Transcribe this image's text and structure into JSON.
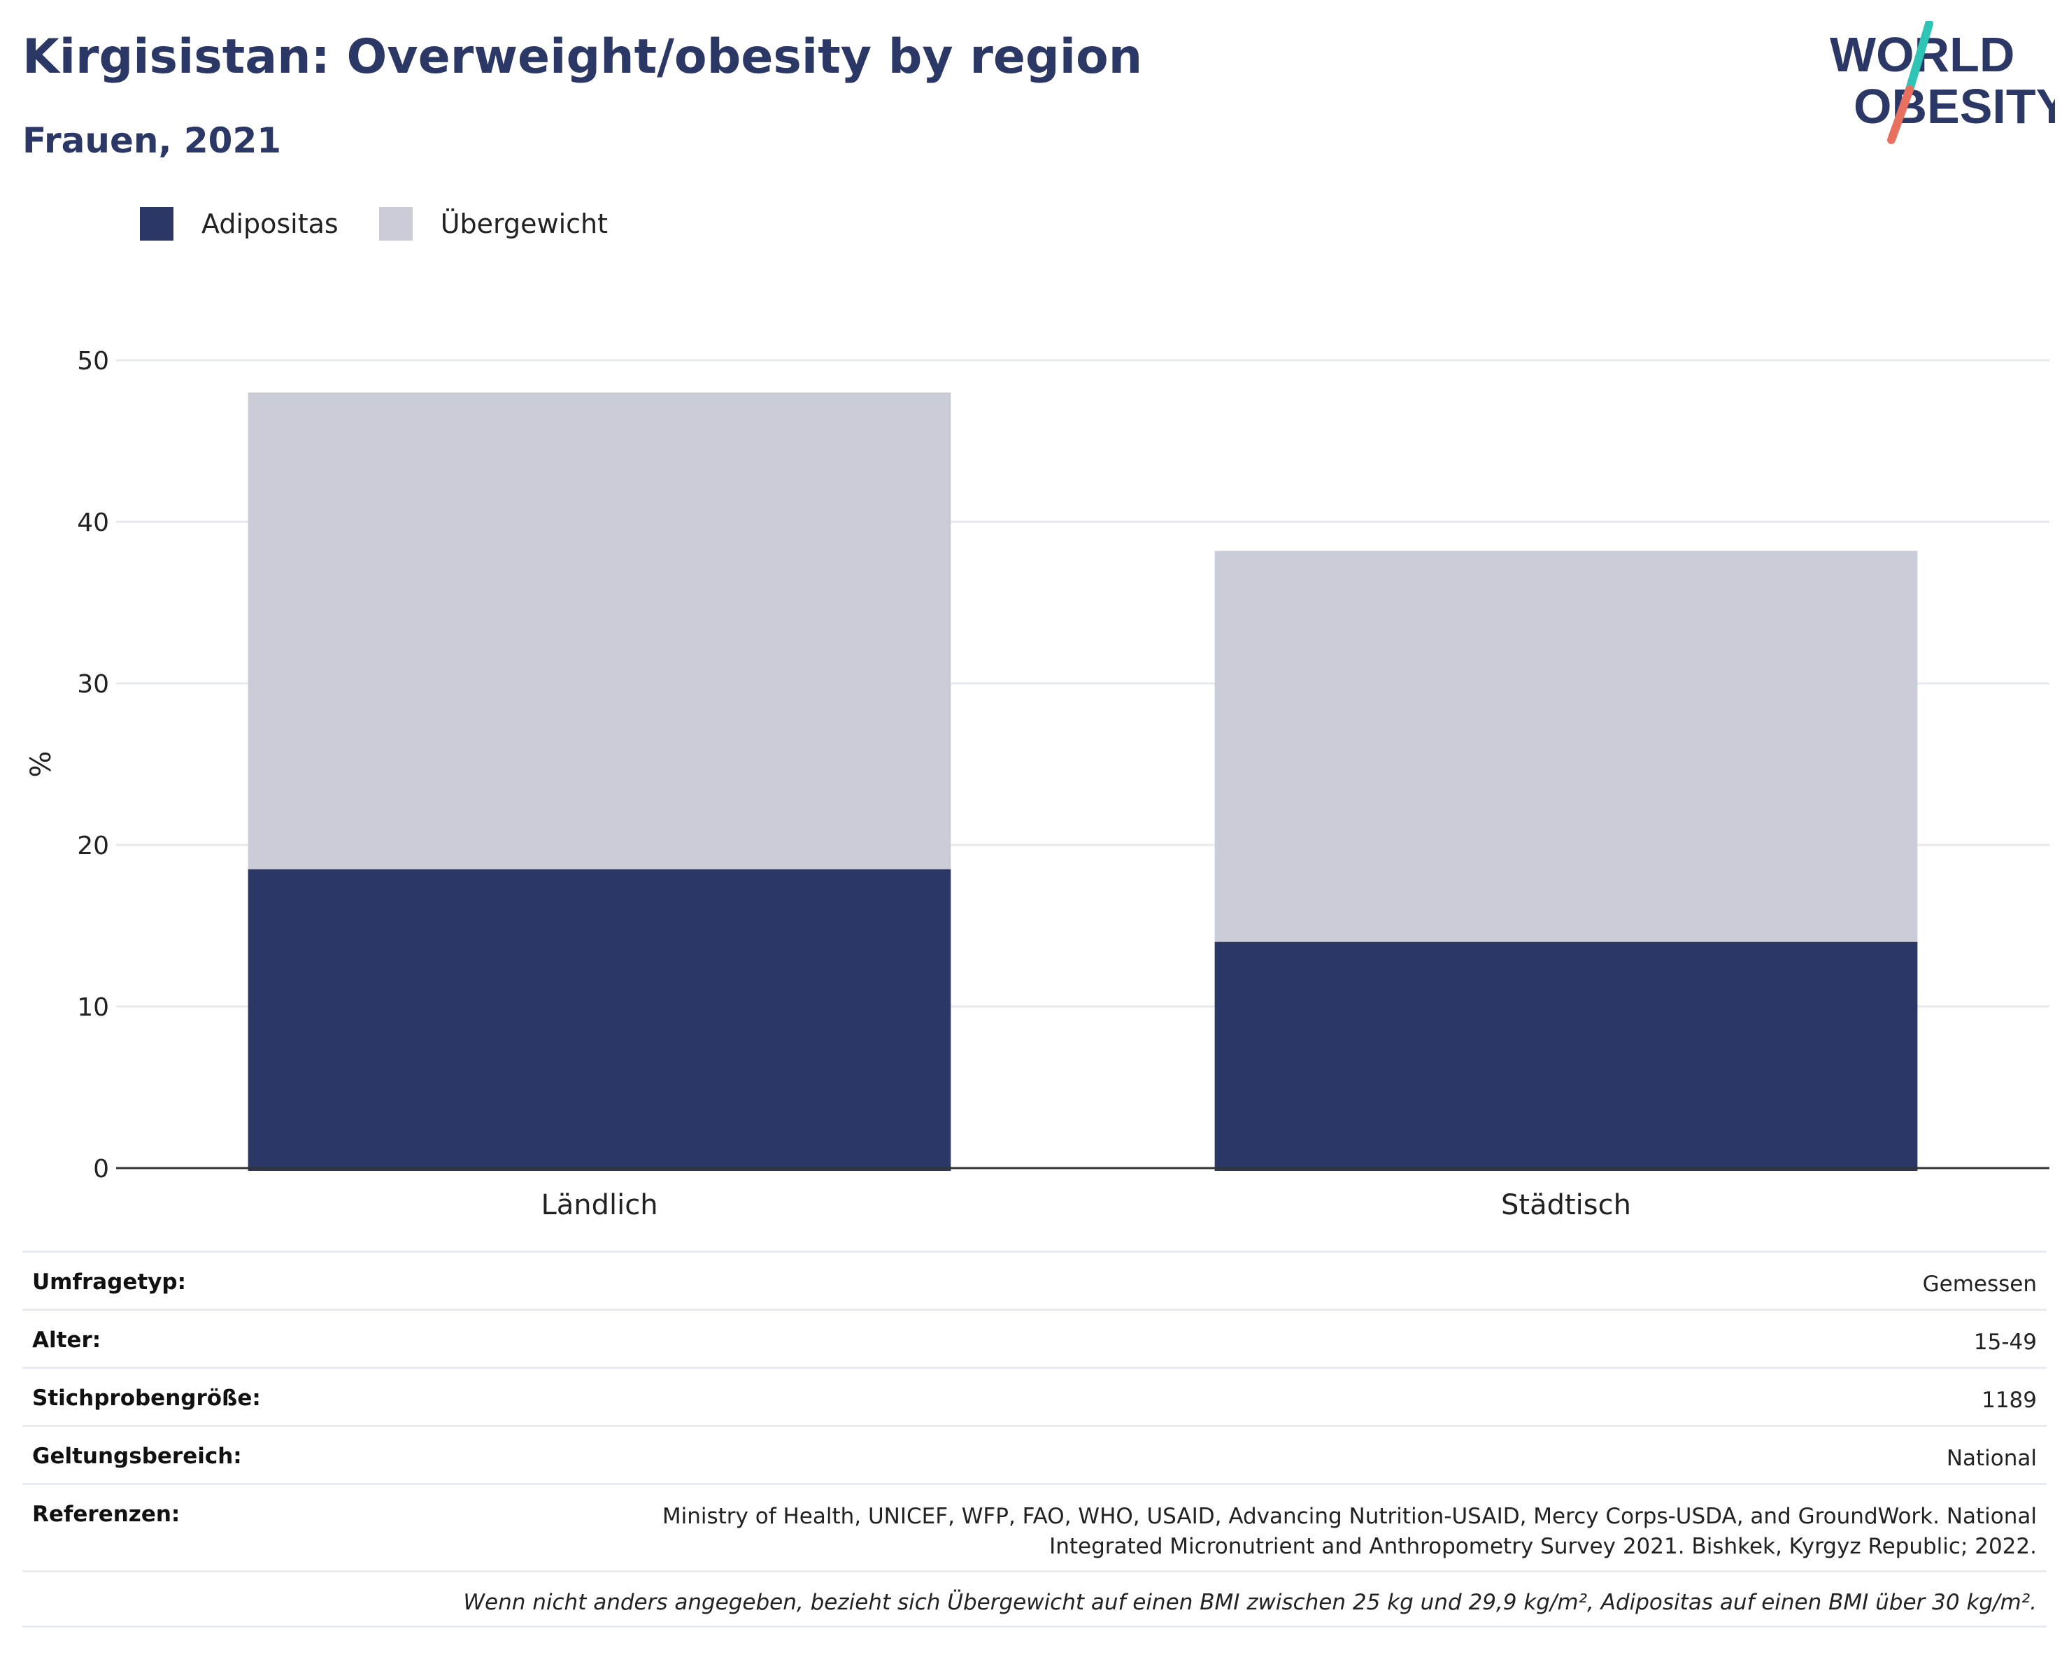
{
  "header": {
    "title": "Kirgisistan: Overweight/obesity by region",
    "subtitle": "Frauen, 2021"
  },
  "logo": {
    "line1": "WORLD",
    "line2": "OBESITY",
    "text_color": "#2b3764",
    "slash_colors": [
      "#2ec4b6",
      "#e8705f"
    ]
  },
  "legend": [
    {
      "label": "Adipositas",
      "color": "#2b3764"
    },
    {
      "label": "Übergewicht",
      "color": "#cacdd8"
    }
  ],
  "chart_data": {
    "type": "bar",
    "stacked": true,
    "categories": [
      "Ländlich",
      "Städtisch"
    ],
    "series": [
      {
        "name": "Adipositas",
        "values": [
          18.5,
          14.0
        ],
        "color": "#2b3764"
      },
      {
        "name": "Übergewicht",
        "values": [
          29.5,
          24.2
        ],
        "color": "#cacdd8"
      }
    ],
    "totals": [
      48.0,
      38.2
    ],
    "ylabel": "%",
    "ylim": [
      0,
      50
    ],
    "yticks": [
      0,
      10,
      20,
      30,
      40,
      50
    ],
    "grid": true,
    "legend_position": "top-left"
  },
  "info": {
    "survey_type": {
      "label": "Umfragetyp:",
      "value": "Gemessen"
    },
    "age": {
      "label": "Alter:",
      "value": "15-49"
    },
    "sample_size": {
      "label": "Stichprobengröße:",
      "value": "1189"
    },
    "coverage": {
      "label": "Geltungsbereich:",
      "value": "National"
    },
    "references": {
      "label": "Referenzen:",
      "value": "Ministry of Health, UNICEF, WFP, FAO, WHO, USAID, Advancing Nutrition-USAID, Mercy Corps-USDA, and GroundWork. National Integrated Micronutrient and Anthropometry Survey 2021. Bishkek, Kyrgyz Republic; 2022."
    },
    "note": "Wenn nicht anders angegeben, bezieht sich Übergewicht auf einen BMI zwischen 25 kg und 29,9 kg/m², Adipositas auf einen BMI über 30 kg/m²."
  }
}
